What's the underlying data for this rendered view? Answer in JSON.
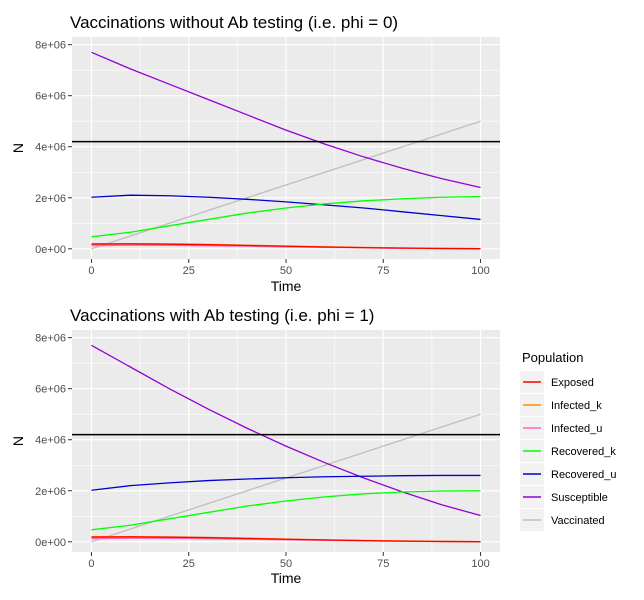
{
  "chart_data": [
    {
      "type": "line",
      "title": "Vaccinations without Ab testing (i.e. phi = 0)",
      "xlabel": "Time",
      "ylabel": "N",
      "xlim": [
        0,
        100
      ],
      "ylim": [
        0,
        8000000
      ],
      "x_ticks": [
        0,
        25,
        50,
        75,
        100
      ],
      "y_ticks": [
        0,
        2000000,
        4000000,
        6000000,
        8000000
      ],
      "x_tick_labels": [
        "0",
        "25",
        "50",
        "75",
        "100"
      ],
      "y_tick_labels": [
        "0e+00",
        "2e+06",
        "4e+06",
        "6e+06",
        "8e+06"
      ],
      "hline": 4200000,
      "grid": true,
      "x": [
        0,
        10,
        20,
        30,
        40,
        50,
        60,
        70,
        80,
        90,
        100
      ],
      "series": [
        {
          "name": "Exposed",
          "values": [
            180000,
            190000,
            180000,
            160000,
            130000,
            100000,
            70000,
            45000,
            25000,
            12000,
            5000
          ]
        },
        {
          "name": "Infected_k",
          "values": [
            200000,
            200000,
            190000,
            170000,
            145000,
            110000,
            80000,
            55000,
            35000,
            18000,
            8000
          ]
        },
        {
          "name": "Infected_u",
          "values": [
            120000,
            140000,
            135000,
            120000,
            100000,
            75000,
            55000,
            35000,
            20000,
            10000,
            4000
          ]
        },
        {
          "name": "Recovered_k",
          "values": [
            470000,
            650000,
            900000,
            1150000,
            1400000,
            1600000,
            1760000,
            1880000,
            1960000,
            2020000,
            2050000
          ]
        },
        {
          "name": "Recovered_u",
          "values": [
            2020000,
            2100000,
            2080000,
            2020000,
            1940000,
            1840000,
            1720000,
            1600000,
            1450000,
            1300000,
            1150000
          ]
        },
        {
          "name": "Susceptible",
          "values": [
            7700000,
            7050000,
            6450000,
            5850000,
            5250000,
            4650000,
            4100000,
            3600000,
            3150000,
            2750000,
            2400000
          ]
        },
        {
          "name": "Vaccinated",
          "values": [
            0,
            500000,
            1000000,
            1500000,
            2000000,
            2500000,
            3000000,
            3500000,
            4000000,
            4500000,
            5000000
          ]
        }
      ]
    },
    {
      "type": "line",
      "title": "Vaccinations with Ab testing (i.e. phi = 1)",
      "xlabel": "Time",
      "ylabel": "N",
      "xlim": [
        0,
        100
      ],
      "ylim": [
        0,
        8000000
      ],
      "x_ticks": [
        0,
        25,
        50,
        75,
        100
      ],
      "y_ticks": [
        0,
        2000000,
        4000000,
        6000000,
        8000000
      ],
      "x_tick_labels": [
        "0",
        "25",
        "50",
        "75",
        "100"
      ],
      "y_tick_labels": [
        "0e+00",
        "2e+06",
        "4e+06",
        "6e+06",
        "8e+06"
      ],
      "hline": 4200000,
      "grid": true,
      "x": [
        0,
        10,
        20,
        30,
        40,
        50,
        60,
        70,
        80,
        90,
        100
      ],
      "series": [
        {
          "name": "Exposed",
          "values": [
            180000,
            190000,
            180000,
            160000,
            130000,
            100000,
            70000,
            45000,
            25000,
            12000,
            5000
          ]
        },
        {
          "name": "Infected_k",
          "values": [
            200000,
            200000,
            190000,
            170000,
            145000,
            110000,
            80000,
            55000,
            35000,
            18000,
            8000
          ]
        },
        {
          "name": "Infected_u",
          "values": [
            120000,
            140000,
            135000,
            120000,
            100000,
            75000,
            55000,
            35000,
            20000,
            10000,
            4000
          ]
        },
        {
          "name": "Recovered_k",
          "values": [
            470000,
            650000,
            900000,
            1150000,
            1400000,
            1600000,
            1760000,
            1880000,
            1950000,
            1990000,
            2000000
          ]
        },
        {
          "name": "Recovered_u",
          "values": [
            2020000,
            2200000,
            2310000,
            2400000,
            2460000,
            2510000,
            2550000,
            2570000,
            2590000,
            2600000,
            2600000
          ]
        },
        {
          "name": "Susceptible",
          "values": [
            7700000,
            6850000,
            6000000,
            5200000,
            4450000,
            3750000,
            3100000,
            2500000,
            1950000,
            1450000,
            1030000
          ]
        },
        {
          "name": "Vaccinated",
          "values": [
            0,
            500000,
            1000000,
            1500000,
            2000000,
            2500000,
            3000000,
            3500000,
            4000000,
            4500000,
            5000000
          ]
        }
      ]
    }
  ],
  "legend": {
    "title": "Population",
    "position": "right",
    "items": [
      {
        "name": "Exposed",
        "color": "#ff0000"
      },
      {
        "name": "Infected_k",
        "color": "#ff8c00"
      },
      {
        "name": "Infected_u",
        "color": "#ff69b4"
      },
      {
        "name": "Recovered_k",
        "color": "#00ff00"
      },
      {
        "name": "Recovered_u",
        "color": "#0000cd"
      },
      {
        "name": "Susceptible",
        "color": "#9400d3"
      },
      {
        "name": "Vaccinated",
        "color": "#bebebe"
      }
    ]
  },
  "colors": {
    "panel_background": "#ebebeb",
    "grid_line": "#ffffff",
    "reference_line": "#000000"
  }
}
